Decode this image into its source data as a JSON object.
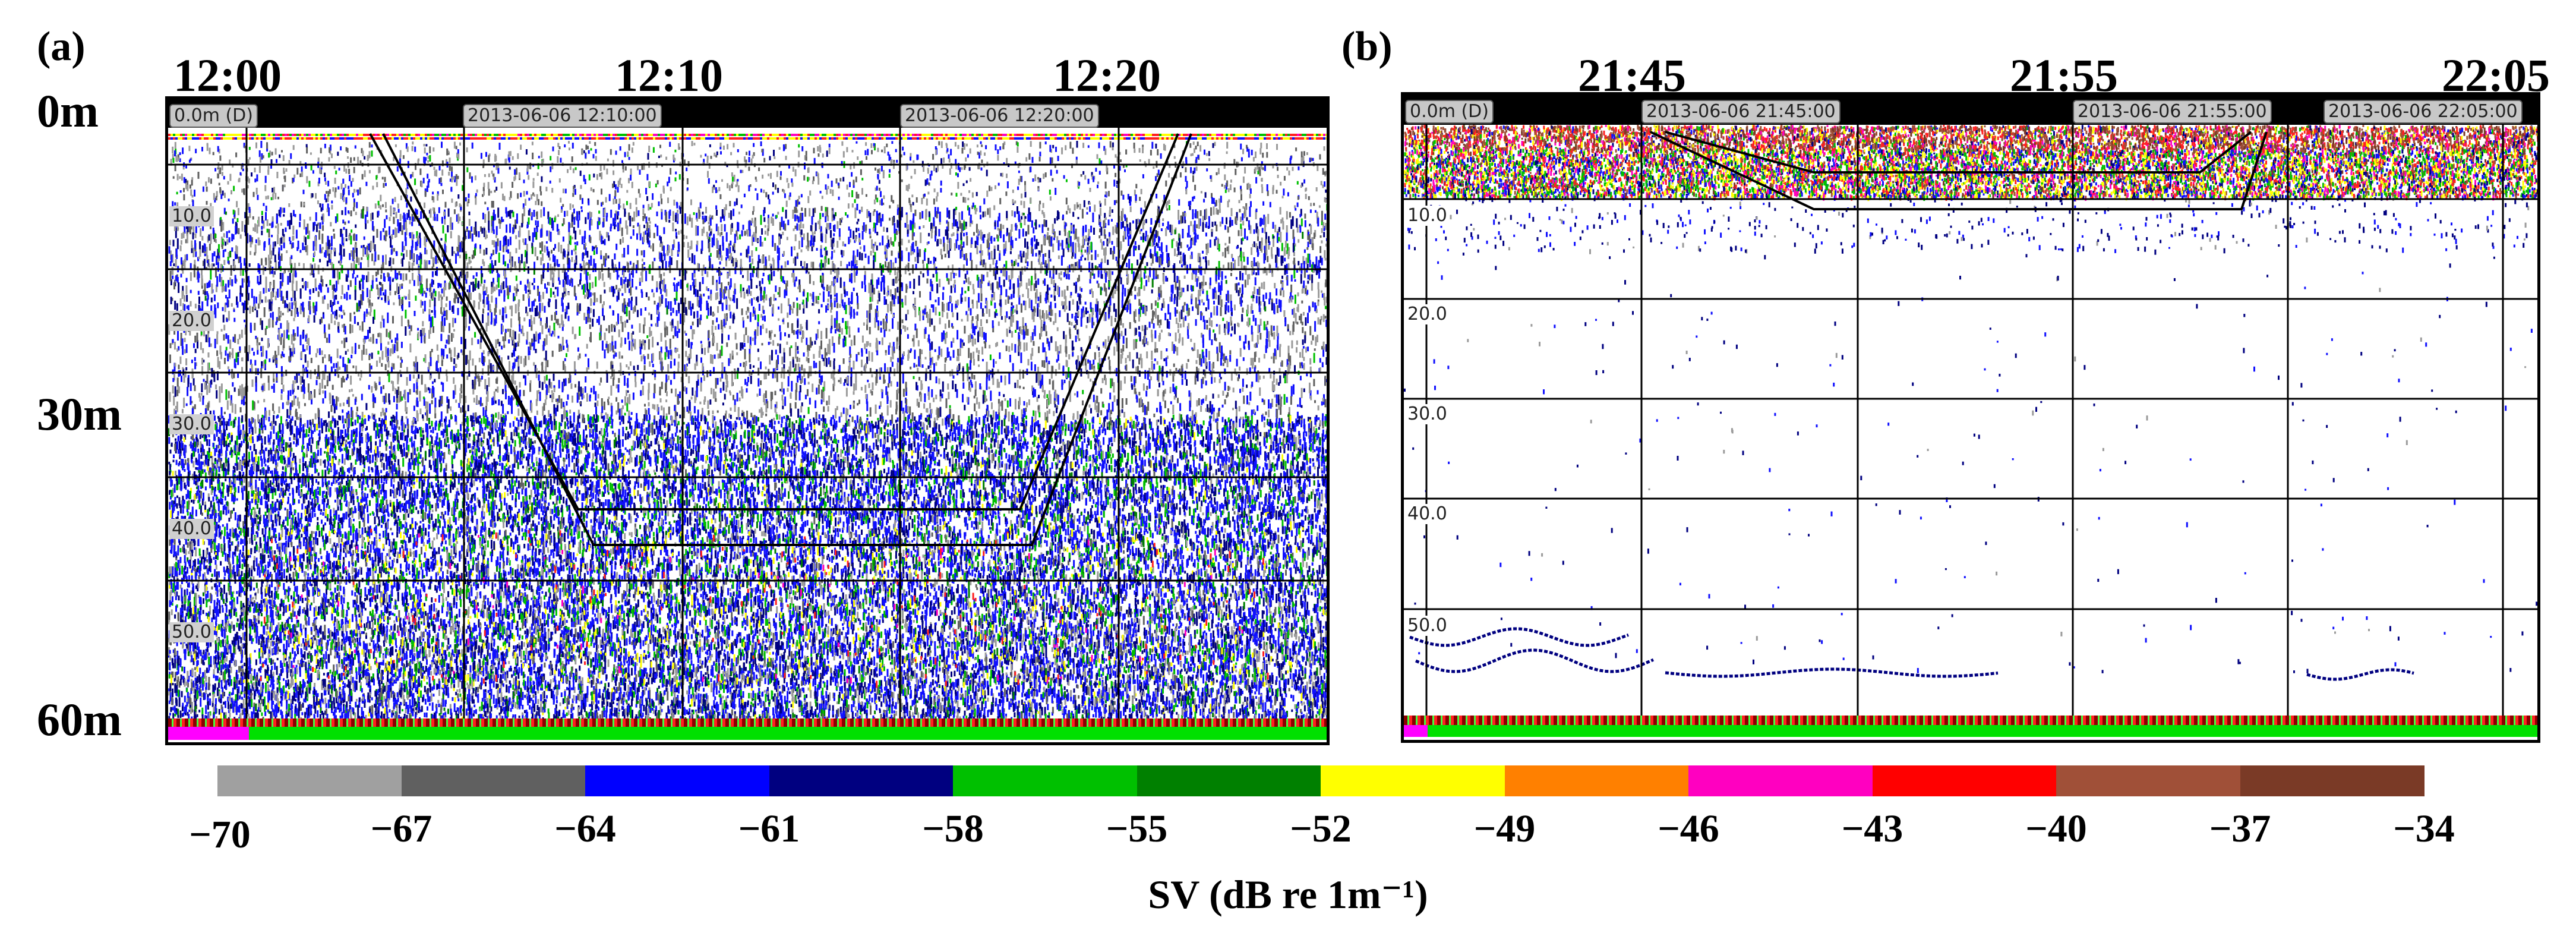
{
  "panel_a": {
    "letter": "(a)",
    "time_labels": [
      "12:00",
      "12:10",
      "12:20"
    ],
    "depth_labels": [
      "0m",
      "30m",
      "60m"
    ],
    "top_tags": [
      "0.0m (D)",
      "2013-06-06 12:10:00",
      "2013-06-06 12:20:00"
    ],
    "grid_depths": [
      "10.0",
      "20.0",
      "30.0",
      "40.0",
      "50.0"
    ]
  },
  "panel_b": {
    "letter": "(b)",
    "time_labels": [
      "21:45",
      "21:55",
      "22:05"
    ],
    "top_tags": [
      "0.0m (D)",
      "2013-06-06 21:45:00",
      "2013-06-06 21:55:00",
      "2013-06-06 22:05:00"
    ],
    "grid_depths": [
      "10.0",
      "20.0",
      "30.0",
      "40.0",
      "50.0"
    ]
  },
  "colorbar": {
    "colors": [
      "#a0a0a0",
      "#606060",
      "#0000ff",
      "#000080",
      "#00c000",
      "#008000",
      "#ffff00",
      "#ff8000",
      "#ff00c0",
      "#ff0000",
      "#a05038",
      "#7a3a26"
    ],
    "ticks": [
      "−70",
      "−67",
      "−64",
      "−61",
      "−58",
      "−55",
      "−52",
      "−49",
      "−46",
      "−43",
      "−40",
      "−37",
      "−34"
    ],
    "label": "SV (dB re 1m⁻¹)"
  }
}
